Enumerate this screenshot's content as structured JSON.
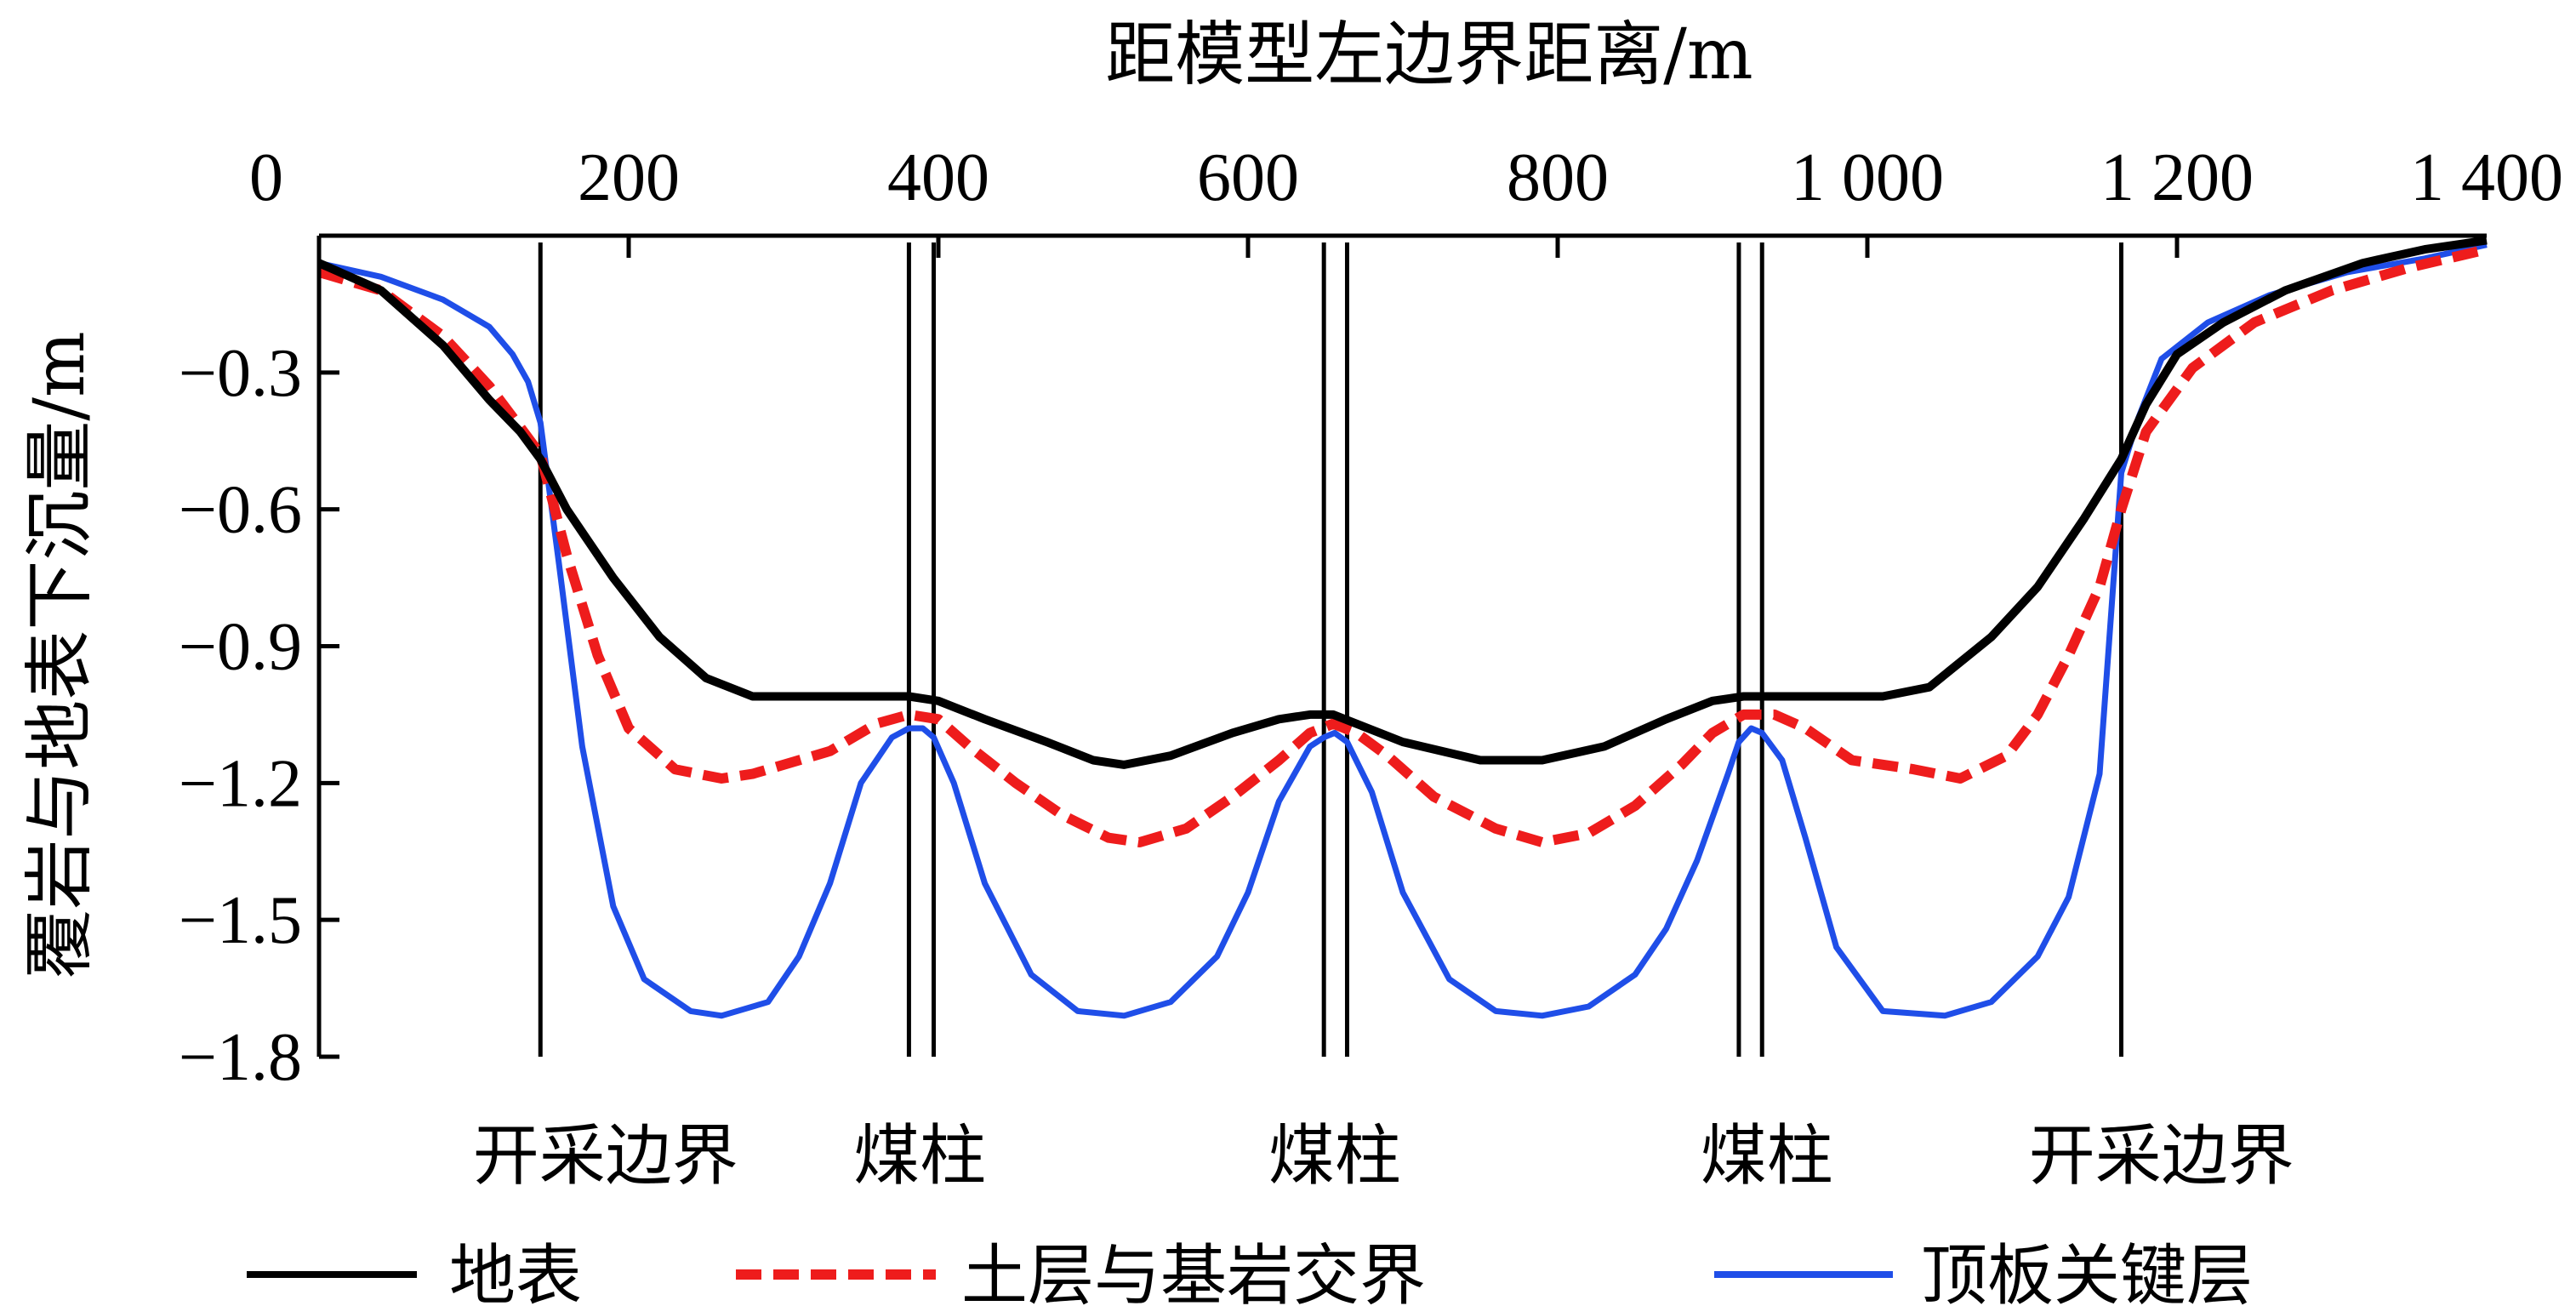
{
  "chart_data": {
    "type": "line",
    "title": "",
    "xlabel": "距模型左边界距离/m",
    "ylabel": "覆岩与地表下沉量/m",
    "xlim": [
      0,
      1400
    ],
    "ylim": [
      -1.8,
      0
    ],
    "x_axis_position": "top",
    "grid": false,
    "xticks": [
      {
        "value": 0,
        "label": "0"
      },
      {
        "value": 200,
        "label": "200"
      },
      {
        "value": 400,
        "label": "400"
      },
      {
        "value": 600,
        "label": "600"
      },
      {
        "value": 800,
        "label": "800"
      },
      {
        "value": 1000,
        "label": "1 000"
      },
      {
        "value": 1200,
        "label": "1 200"
      },
      {
        "value": 1400,
        "label": "1 400"
      }
    ],
    "yticks": [
      {
        "value": -0.3,
        "label": "−0.3"
      },
      {
        "value": -0.6,
        "label": "−0.6"
      },
      {
        "value": -0.9,
        "label": "−0.9"
      },
      {
        "value": -1.2,
        "label": "−1.2"
      },
      {
        "value": -1.5,
        "label": "−1.5"
      },
      {
        "value": -1.8,
        "label": "−1.8"
      }
    ],
    "vertical_markers": [
      {
        "x": 143,
        "label": "开采边界",
        "label_x": 185
      },
      {
        "x": 381,
        "label": "煤柱",
        "label_x": 388
      },
      {
        "x": 397
      },
      {
        "x": 649,
        "label": "煤柱",
        "label_x": 656
      },
      {
        "x": 664
      },
      {
        "x": 917,
        "label": "煤柱",
        "label_x": 935
      },
      {
        "x": 932
      },
      {
        "x": 1164,
        "label": "开采边界",
        "label_x": 1190
      }
    ],
    "legend_position": "bottom",
    "series": [
      {
        "name": "地表",
        "color": "#000000",
        "style": "solid",
        "x": [
          0,
          40,
          80,
          110,
          130,
          143,
          160,
          190,
          220,
          250,
          280,
          320,
          360,
          381,
          400,
          430,
          470,
          500,
          520,
          550,
          590,
          620,
          640,
          655,
          670,
          700,
          750,
          790,
          830,
          870,
          900,
          920,
          940,
          960,
          1010,
          1040,
          1080,
          1110,
          1140,
          1164,
          1180,
          1200,
          1230,
          1270,
          1320,
          1360,
          1400
        ],
        "y": [
          -0.06,
          -0.12,
          -0.24,
          -0.36,
          -0.43,
          -0.49,
          -0.6,
          -0.75,
          -0.88,
          -0.97,
          -1.01,
          -1.01,
          -1.01,
          -1.01,
          -1.02,
          -1.06,
          -1.11,
          -1.15,
          -1.16,
          -1.14,
          -1.09,
          -1.06,
          -1.05,
          -1.05,
          -1.07,
          -1.11,
          -1.15,
          -1.15,
          -1.12,
          -1.06,
          -1.02,
          -1.01,
          -1.01,
          -1.01,
          -1.01,
          -0.99,
          -0.88,
          -0.77,
          -0.62,
          -0.49,
          -0.37,
          -0.26,
          -0.19,
          -0.12,
          -0.06,
          -0.03,
          -0.01
        ]
      },
      {
        "name": "土层与基岩交界",
        "color": "#ee1c1c",
        "style": "dashed",
        "x": [
          0,
          40,
          80,
          110,
          130,
          143,
          160,
          180,
          200,
          230,
          260,
          280,
          300,
          330,
          360,
          381,
          400,
          420,
          450,
          480,
          510,
          530,
          560,
          590,
          620,
          640,
          655,
          670,
          690,
          720,
          760,
          790,
          820,
          850,
          880,
          900,
          920,
          940,
          960,
          990,
          1030,
          1060,
          1090,
          1110,
          1130,
          1150,
          1164,
          1180,
          1210,
          1250,
          1300,
          1350,
          1400
        ],
        "y": [
          -0.08,
          -0.12,
          -0.22,
          -0.33,
          -0.42,
          -0.48,
          -0.7,
          -0.92,
          -1.08,
          -1.17,
          -1.19,
          -1.18,
          -1.16,
          -1.13,
          -1.07,
          -1.05,
          -1.06,
          -1.12,
          -1.2,
          -1.27,
          -1.32,
          -1.33,
          -1.3,
          -1.23,
          -1.15,
          -1.09,
          -1.07,
          -1.09,
          -1.14,
          -1.23,
          -1.3,
          -1.33,
          -1.31,
          -1.25,
          -1.16,
          -1.09,
          -1.05,
          -1.05,
          -1.08,
          -1.15,
          -1.17,
          -1.19,
          -1.14,
          -1.05,
          -0.92,
          -0.77,
          -0.6,
          -0.43,
          -0.29,
          -0.19,
          -0.12,
          -0.07,
          -0.03
        ]
      },
      {
        "name": "顶板关键层",
        "color": "#1f4ee8",
        "style": "solid",
        "x": [
          0,
          40,
          80,
          110,
          125,
          135,
          143,
          155,
          170,
          190,
          210,
          240,
          260,
          290,
          310,
          330,
          350,
          370,
          381,
          390,
          397,
          410,
          430,
          460,
          490,
          520,
          550,
          580,
          600,
          620,
          640,
          649,
          656,
          664,
          680,
          700,
          730,
          760,
          790,
          820,
          850,
          870,
          890,
          910,
          917,
          925,
          932,
          945,
          960,
          980,
          1010,
          1050,
          1080,
          1110,
          1130,
          1150,
          1164,
          1175,
          1190,
          1220,
          1260,
          1310,
          1360,
          1400
        ],
        "y": [
          -0.06,
          -0.09,
          -0.14,
          -0.2,
          -0.26,
          -0.32,
          -0.41,
          -0.72,
          -1.12,
          -1.47,
          -1.63,
          -1.7,
          -1.71,
          -1.68,
          -1.58,
          -1.42,
          -1.2,
          -1.1,
          -1.08,
          -1.08,
          -1.1,
          -1.2,
          -1.42,
          -1.62,
          -1.7,
          -1.71,
          -1.68,
          -1.58,
          -1.44,
          -1.24,
          -1.12,
          -1.1,
          -1.09,
          -1.11,
          -1.22,
          -1.44,
          -1.63,
          -1.7,
          -1.71,
          -1.69,
          -1.62,
          -1.52,
          -1.37,
          -1.18,
          -1.11,
          -1.08,
          -1.09,
          -1.15,
          -1.32,
          -1.56,
          -1.7,
          -1.71,
          -1.68,
          -1.58,
          -1.45,
          -1.18,
          -0.52,
          -0.4,
          -0.27,
          -0.19,
          -0.13,
          -0.08,
          -0.05,
          -0.02
        ]
      }
    ]
  }
}
